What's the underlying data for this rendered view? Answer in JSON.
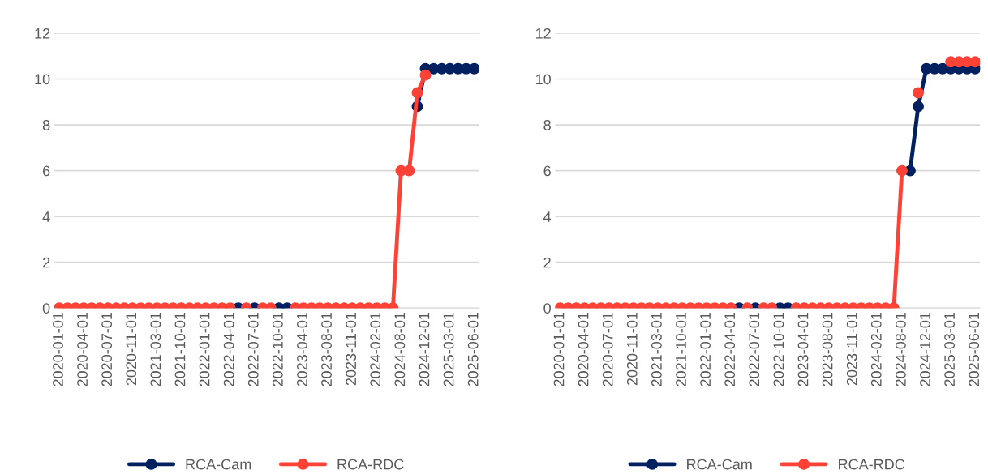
{
  "chart_data": [
    {
      "type": "line",
      "categories": [
        "2020-01-01",
        null,
        null,
        "2020-04-01",
        null,
        null,
        "2020-07-01",
        null,
        null,
        "2020-11-01",
        null,
        null,
        "2021-03-01",
        null,
        null,
        "2021-10-01",
        null,
        null,
        "2022-01-01",
        null,
        null,
        "2022-04-01",
        null,
        null,
        "2022-07-01",
        null,
        null,
        "2022-10-01",
        null,
        null,
        "2023-04-01",
        null,
        null,
        "2023-08-01",
        null,
        null,
        "2023-11-01",
        null,
        null,
        "2024-02-01",
        null,
        null,
        "2024-08-01",
        null,
        null,
        "2024-12-01",
        null,
        null,
        "2025-03-01",
        null,
        null,
        "2025-06-01"
      ],
      "series": [
        {
          "name": "RCA-Cam",
          "color": "#002060",
          "values": [
            null,
            null,
            null,
            null,
            null,
            null,
            null,
            null,
            null,
            null,
            null,
            null,
            null,
            null,
            null,
            null,
            null,
            null,
            null,
            null,
            null,
            null,
            0,
            null,
            0,
            null,
            null,
            0,
            0,
            null,
            null,
            null,
            null,
            null,
            null,
            null,
            null,
            null,
            null,
            null,
            null,
            null,
            null,
            null,
            8.8,
            10.45,
            10.45,
            10.45,
            10.45,
            10.45,
            10.45,
            10.45
          ]
        },
        {
          "name": "RCA-RDC",
          "color": "#ff4136",
          "values": [
            0,
            0,
            0,
            0,
            0,
            0,
            0,
            0,
            0,
            0,
            0,
            0,
            0,
            0,
            0,
            0,
            0,
            0,
            0,
            0,
            0,
            0,
            null,
            0,
            null,
            0,
            0,
            null,
            null,
            0,
            0,
            0,
            0,
            0,
            0,
            0,
            0,
            0,
            0,
            0,
            0,
            0,
            6,
            6,
            9.4,
            10.17,
            null,
            null,
            null,
            null,
            null,
            null
          ]
        }
      ],
      "ylim": [
        0,
        12
      ],
      "yticks": [
        0,
        2,
        4,
        6,
        8,
        10,
        12
      ],
      "grid": "y",
      "legend": "bottom",
      "marker": "circle",
      "line_style": "solid"
    },
    {
      "type": "line",
      "categories": [
        "2020-01-01",
        null,
        null,
        "2020-04-01",
        null,
        null,
        "2020-07-01",
        null,
        null,
        "2020-11-01",
        null,
        null,
        "2021-03-01",
        null,
        null,
        "2021-10-01",
        null,
        null,
        "2022-01-01",
        null,
        null,
        "2022-04-01",
        null,
        null,
        "2022-07-01",
        null,
        null,
        "2022-10-01",
        null,
        null,
        "2023-04-01",
        null,
        null,
        "2023-08-01",
        null,
        null,
        "2023-11-01",
        null,
        null,
        "2024-02-01",
        null,
        null,
        "2024-08-01",
        null,
        null,
        "2024-12-01",
        null,
        null,
        "2025-03-01",
        null,
        null,
        "2025-06-01"
      ],
      "series": [
        {
          "name": "RCA-Cam",
          "color": "#002060",
          "values": [
            null,
            null,
            null,
            null,
            null,
            null,
            null,
            null,
            null,
            null,
            null,
            null,
            null,
            null,
            null,
            null,
            null,
            null,
            null,
            null,
            null,
            null,
            0,
            null,
            0,
            null,
            null,
            0,
            0,
            null,
            null,
            null,
            null,
            null,
            null,
            null,
            null,
            null,
            null,
            null,
            null,
            null,
            null,
            6,
            8.8,
            10.45,
            10.45,
            10.45,
            10.45,
            10.45,
            10.45,
            10.45
          ]
        },
        {
          "name": "RCA-RDC",
          "color": "#ff4136",
          "values": [
            0,
            0,
            0,
            0,
            0,
            0,
            0,
            0,
            0,
            0,
            0,
            0,
            0,
            0,
            0,
            0,
            0,
            0,
            0,
            0,
            0,
            0,
            null,
            0,
            null,
            0,
            0,
            null,
            null,
            0,
            0,
            0,
            0,
            0,
            0,
            0,
            0,
            0,
            0,
            0,
            0,
            0,
            6,
            null,
            9.4,
            null,
            null,
            null,
            10.75,
            10.75,
            10.75,
            10.75
          ]
        }
      ],
      "ylim": [
        0,
        12
      ],
      "yticks": [
        0,
        2,
        4,
        6,
        8,
        10,
        12
      ],
      "grid": "y",
      "legend": "bottom",
      "marker": "circle",
      "line_style": "solid"
    }
  ]
}
